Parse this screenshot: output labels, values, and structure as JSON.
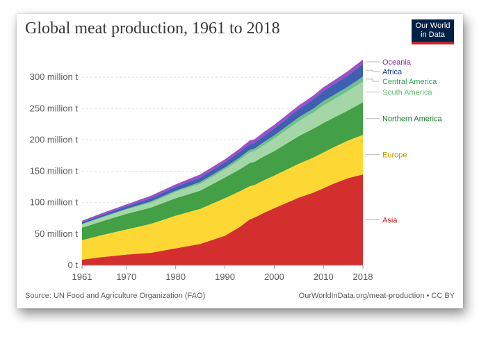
{
  "title": "Global meat production, 1961 to 2018",
  "logo": {
    "line1": "Our World",
    "line2": "in Data"
  },
  "source": "Source: UN Food and Agriculture Organization (FAO)",
  "credit": "OurWorldInData.org/meat-production • CC BY",
  "chart_data": {
    "type": "area",
    "stacked": true,
    "title": "Global meat production, 1961 to 2018",
    "xlabel": "",
    "ylabel": "",
    "xlim": [
      1961,
      2018
    ],
    "ylim": [
      0,
      340
    ],
    "x_ticks": [
      1961,
      1970,
      1980,
      1990,
      2000,
      2010,
      2018
    ],
    "y_ticks": [
      0,
      50,
      100,
      150,
      200,
      250,
      300
    ],
    "y_tick_labels": [
      "0 t",
      "50 million t",
      "100 million t",
      "150 million t",
      "200 million t",
      "250 million t",
      "300 million t"
    ],
    "grid": "horizontal dashed",
    "legend": "right, inline labels",
    "x": [
      1961,
      1965,
      1970,
      1975,
      1980,
      1985,
      1990,
      1993,
      1995,
      1996,
      1998,
      2000,
      2005,
      2008,
      2010,
      2012,
      2015,
      2018
    ],
    "series": [
      {
        "name": "Asia",
        "color": "#d32f2f",
        "label_color": "#b71c1c",
        "values": [
          9,
          13,
          17,
          20,
          27,
          34,
          47,
          61,
          73,
          76,
          84,
          91,
          108,
          116,
          123,
          130,
          139,
          145
        ]
      },
      {
        "name": "Europe",
        "color": "#fdd835",
        "label_color": "#c79a00",
        "values": [
          31,
          35,
          40,
          46,
          52,
          56,
          60,
          57,
          53,
          52,
          52,
          52,
          54,
          56,
          57,
          58,
          60,
          63
        ]
      },
      {
        "name": "Northern America",
        "color": "#43a047",
        "label_color": "#1b7a2e",
        "values": [
          20,
          22,
          25,
          26,
          28,
          29,
          33,
          35,
          37,
          37,
          38,
          39,
          44,
          46,
          47,
          47,
          48,
          52
        ]
      },
      {
        "name": "South America",
        "color": "#a5d6a7",
        "label_color": "#66bb6a",
        "values": [
          5,
          6,
          7,
          8,
          10,
          11,
          13,
          15,
          17,
          17,
          18,
          20,
          24,
          26,
          28,
          29,
          31,
          33
        ]
      },
      {
        "name": "Central America",
        "color": "#6fbf8a",
        "label_color": "#2e9b55",
        "values": [
          1,
          1,
          1,
          2,
          2,
          3,
          3,
          4,
          4,
          4,
          5,
          5,
          6,
          6,
          7,
          7,
          7,
          8
        ]
      },
      {
        "name": "Africa",
        "color": "#3f5fb3",
        "label_color": "#1e3a8a",
        "values": [
          3,
          3,
          4,
          5,
          6,
          7,
          8,
          9,
          9,
          9,
          10,
          11,
          13,
          15,
          16,
          17,
          18,
          20
        ]
      },
      {
        "name": "Oceania",
        "color": "#9c4fc7",
        "label_color": "#8e24aa",
        "values": [
          2,
          3,
          3,
          4,
          4,
          5,
          5,
          5,
          6,
          6,
          6,
          6,
          6,
          6,
          6,
          6,
          7,
          7
        ]
      }
    ]
  }
}
